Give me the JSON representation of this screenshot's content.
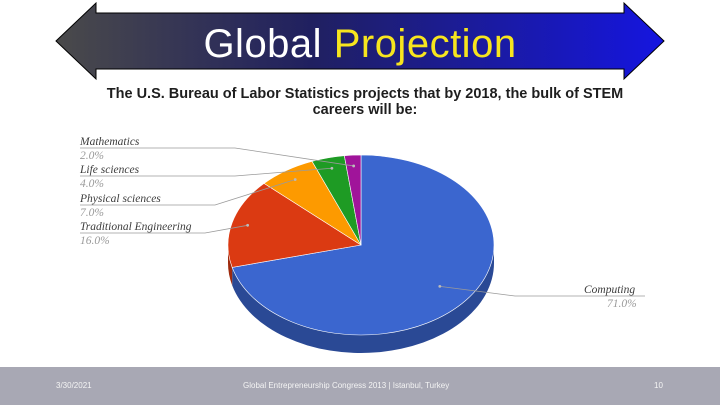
{
  "banner": {
    "title_part1": "Global",
    "title_part2": "Projection",
    "colors": {
      "arrow_left": "#4a4a4a",
      "arrow_right": "#1515e0",
      "accent": "#f7e51e"
    }
  },
  "chart_data": {
    "type": "pie",
    "style": "3d",
    "title": "The U.S. Bureau of Labor Statistics projects that by 2018, the bulk of STEM careers will be:",
    "slices": [
      {
        "label": "Computing",
        "value": 71.0,
        "value_label": "71.0%",
        "color": "#3b66cf"
      },
      {
        "label": "Traditional Engineering",
        "value": 16.0,
        "value_label": "16.0%",
        "color": "#db3a12"
      },
      {
        "label": "Physical sciences",
        "value": 7.0,
        "value_label": "7.0%",
        "color": "#fd9a00"
      },
      {
        "label": "Life sciences",
        "value": 4.0,
        "value_label": "4.0%",
        "color": "#1e9b24"
      },
      {
        "label": "Mathematics",
        "value": 2.0,
        "value_label": "2.0%",
        "color": "#a0149a"
      }
    ]
  },
  "footer": {
    "date": "3/30/2021",
    "event": "Global Entrepreneurship Congress 2013 | Istanbul, Turkey",
    "page": "10"
  }
}
